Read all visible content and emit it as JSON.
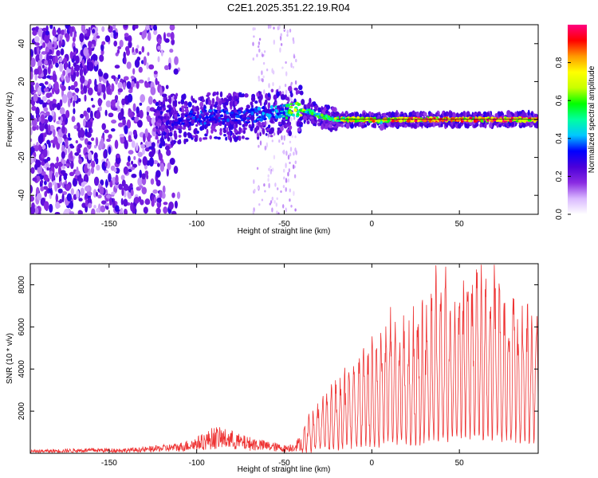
{
  "title": "C2E1.2025.351.22.19.R04",
  "chart_data": [
    {
      "type": "heatmap",
      "xlabel": "Height of straight line (km)",
      "ylabel": "Frequency (Hz)",
      "xlim": [
        -195,
        95
      ],
      "ylim": [
        -50,
        50
      ],
      "x_ticks": [
        -150,
        -100,
        -50,
        0,
        50
      ],
      "y_ticks": [
        -40,
        -20,
        0,
        20,
        40
      ],
      "colorbar": {
        "label": "Normalized spectral amplitude",
        "range": [
          0,
          1
        ],
        "ticks": [
          0.0,
          0.2,
          0.4,
          0.6,
          0.8
        ],
        "tick_labels": [
          "0.0",
          "0.2",
          "0.4",
          "0.6",
          "0.8"
        ],
        "colormap": [
          "#ffffff",
          "#d9b8ff",
          "#8a2be2",
          "#4b00d9",
          "#0000ff",
          "#00c8ff",
          "#00ffa0",
          "#00ff00",
          "#c8ff00",
          "#ffff00",
          "#ff9900",
          "#ff0000",
          "#ff0080"
        ]
      },
      "signal_track": {
        "x": [
          -120,
          -110,
          -100,
          -90,
          -80,
          -70,
          -60,
          -50,
          -45,
          -40,
          -35,
          -30,
          -25,
          -20,
          -10,
          0,
          5,
          10,
          50,
          95
        ],
        "frequency": [
          -2,
          0,
          1,
          2,
          1,
          2,
          3,
          4,
          5,
          5,
          4,
          2,
          1,
          0,
          0,
          0,
          -1,
          0,
          0,
          0
        ],
        "amplitude": [
          0.25,
          0.3,
          0.35,
          0.35,
          0.35,
          0.35,
          0.4,
          0.45,
          0.7,
          0.75,
          0.55,
          0.6,
          0.55,
          0.75,
          0.8,
          0.85,
          0.7,
          0.9,
          0.95,
          0.95
        ]
      }
    },
    {
      "type": "line",
      "xlabel": "Height of straight line (km)",
      "ylabel": "SNR (10 * v/v)",
      "xlim": [
        -195,
        95
      ],
      "ylim": [
        0,
        9000
      ],
      "x_ticks": [
        -150,
        -100,
        -50,
        0,
        50
      ],
      "y_ticks": [
        2000,
        4000,
        6000,
        8000
      ],
      "color": "#ee3333",
      "series": [
        {
          "x": [
            -195,
            -180,
            -160,
            -140,
            -130,
            -120,
            -110,
            -100,
            -95,
            -90,
            -85,
            -80,
            -75,
            -70,
            -65,
            -60,
            -55,
            -50,
            -45,
            -40,
            -35,
            -30,
            -25,
            -20,
            -15,
            -10,
            -5,
            0,
            5,
            10,
            15,
            20,
            25,
            30,
            35,
            40,
            45,
            50,
            55,
            60,
            65,
            70,
            75,
            80,
            85,
            90,
            95
          ],
          "y": [
            150,
            200,
            250,
            250,
            300,
            400,
            500,
            800,
            1000,
            1300,
            1200,
            1100,
            900,
            800,
            700,
            600,
            500,
            400,
            500,
            900,
            1500,
            2000,
            2300,
            2500,
            3000,
            3500,
            3800,
            4000,
            4300,
            5000,
            4500,
            4700,
            5000,
            5600,
            6000,
            6300,
            5900,
            6100,
            6500,
            7000,
            6400,
            6500,
            6200,
            5500,
            5000,
            5200,
            5400
          ]
        }
      ]
    }
  ]
}
